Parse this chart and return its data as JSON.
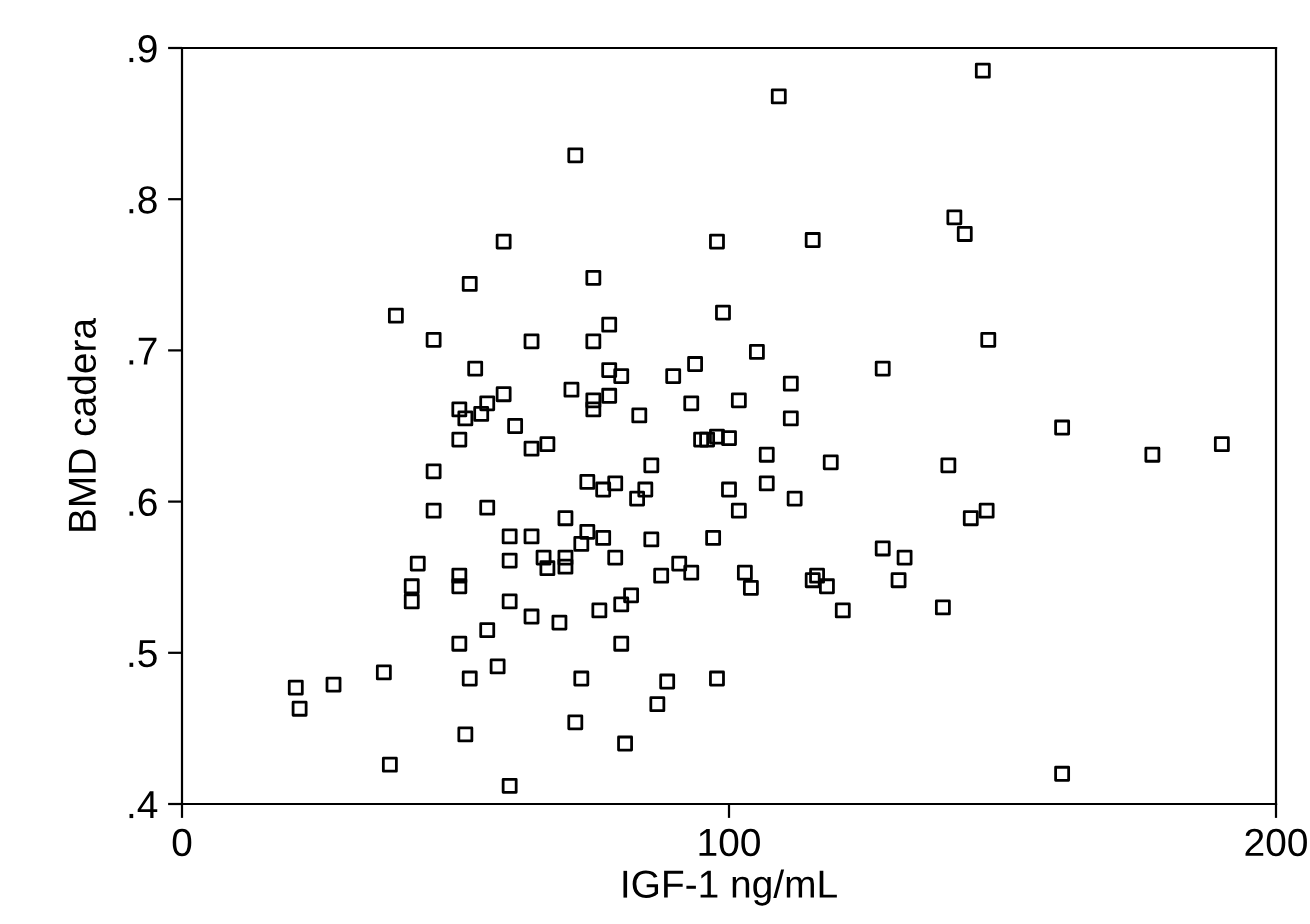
{
  "chart_data": {
    "type": "scatter",
    "xlabel": "IGF-1 ng/mL",
    "ylabel": "BMD cadera",
    "marker": "square",
    "grid": false,
    "xlim": [
      0,
      200
    ],
    "xticks": [
      0,
      100,
      200
    ],
    "ylim": [
      0.4,
      0.9
    ],
    "yticks": [
      {
        "value": 0.4,
        "label": ".4"
      },
      {
        "value": 0.5,
        "label": ".5"
      },
      {
        "value": 0.6,
        "label": ".6"
      },
      {
        "value": 0.7,
        "label": ".7"
      },
      {
        "value": 0.8,
        "label": ".8"
      },
      {
        "value": 0.9,
        "label": ".9"
      }
    ],
    "series": [
      {
        "color": "#000000",
        "x": [
          71.9,
          58.8,
          52.6,
          75.2,
          39.1,
          46.0,
          63.9,
          75.2,
          53.6,
          58.8,
          71.2,
          75.2,
          75.2,
          50.7,
          51.8,
          55.8,
          54.7,
          60.9,
          146.4,
          109.1,
          141.2,
          143.1,
          97.8,
          115.3,
          78.1,
          98.9,
          105.1,
          147.4,
          78.1,
          80.3,
          89.8,
          93.8,
          128.1,
          111.3,
          78.1,
          83.6,
          93.1,
          101.8,
          111.3,
          50.7,
          63.9,
          66.8,
          46.0,
          74.1,
          46.0,
          55.8,
          70.1,
          59.9,
          63.9,
          74.1,
          73.0,
          43.1,
          66.1,
          70.1,
          66.8,
          70.1,
          59.9,
          50.7,
          50.7,
          42.0,
          42.0,
          59.9,
          63.9,
          69.0,
          76.3,
          55.8,
          50.7,
          36.9,
          27.7,
          20.8,
          21.5,
          52.6,
          57.7,
          73.0,
          71.9,
          51.8,
          38.0,
          59.9,
          94.9,
          96.0,
          97.8,
          100.0,
          106.9,
          118.6,
          140.1,
          85.8,
          77.0,
          79.2,
          83.2,
          84.7,
          100.0,
          106.9,
          112.0,
          101.8,
          144.2,
          147.1,
          77.0,
          85.8,
          97.1,
          79.2,
          128.1,
          132.1,
          131.0,
          90.9,
          93.1,
          87.6,
          102.9,
          104.0,
          115.3,
          116.1,
          117.9,
          120.8,
          139.1,
          80.3,
          82.1,
          80.3,
          88.7,
          97.8,
          86.9,
          81.0,
          160.9,
          177.4,
          190.1,
          160.9
        ],
        "values": [
          0.829,
          0.772,
          0.744,
          0.748,
          0.723,
          0.707,
          0.706,
          0.706,
          0.688,
          0.671,
          0.674,
          0.667,
          0.661,
          0.661,
          0.655,
          0.665,
          0.658,
          0.65,
          0.885,
          0.868,
          0.788,
          0.777,
          0.772,
          0.773,
          0.717,
          0.725,
          0.699,
          0.707,
          0.687,
          0.683,
          0.683,
          0.691,
          0.688,
          0.678,
          0.67,
          0.657,
          0.665,
          0.667,
          0.655,
          0.641,
          0.635,
          0.638,
          0.62,
          0.613,
          0.594,
          0.596,
          0.589,
          0.577,
          0.577,
          0.58,
          0.572,
          0.559,
          0.563,
          0.563,
          0.556,
          0.557,
          0.561,
          0.551,
          0.544,
          0.544,
          0.534,
          0.534,
          0.524,
          0.52,
          0.528,
          0.515,
          0.506,
          0.487,
          0.479,
          0.477,
          0.463,
          0.483,
          0.491,
          0.483,
          0.454,
          0.446,
          0.426,
          0.412,
          0.641,
          0.641,
          0.643,
          0.642,
          0.631,
          0.626,
          0.624,
          0.624,
          0.608,
          0.612,
          0.602,
          0.608,
          0.608,
          0.612,
          0.602,
          0.594,
          0.589,
          0.594,
          0.576,
          0.575,
          0.576,
          0.563,
          0.569,
          0.563,
          0.548,
          0.559,
          0.553,
          0.551,
          0.553,
          0.543,
          0.548,
          0.551,
          0.544,
          0.528,
          0.53,
          0.532,
          0.538,
          0.506,
          0.481,
          0.483,
          0.466,
          0.44,
          0.649,
          0.631,
          0.638,
          0.42
        ]
      }
    ]
  }
}
